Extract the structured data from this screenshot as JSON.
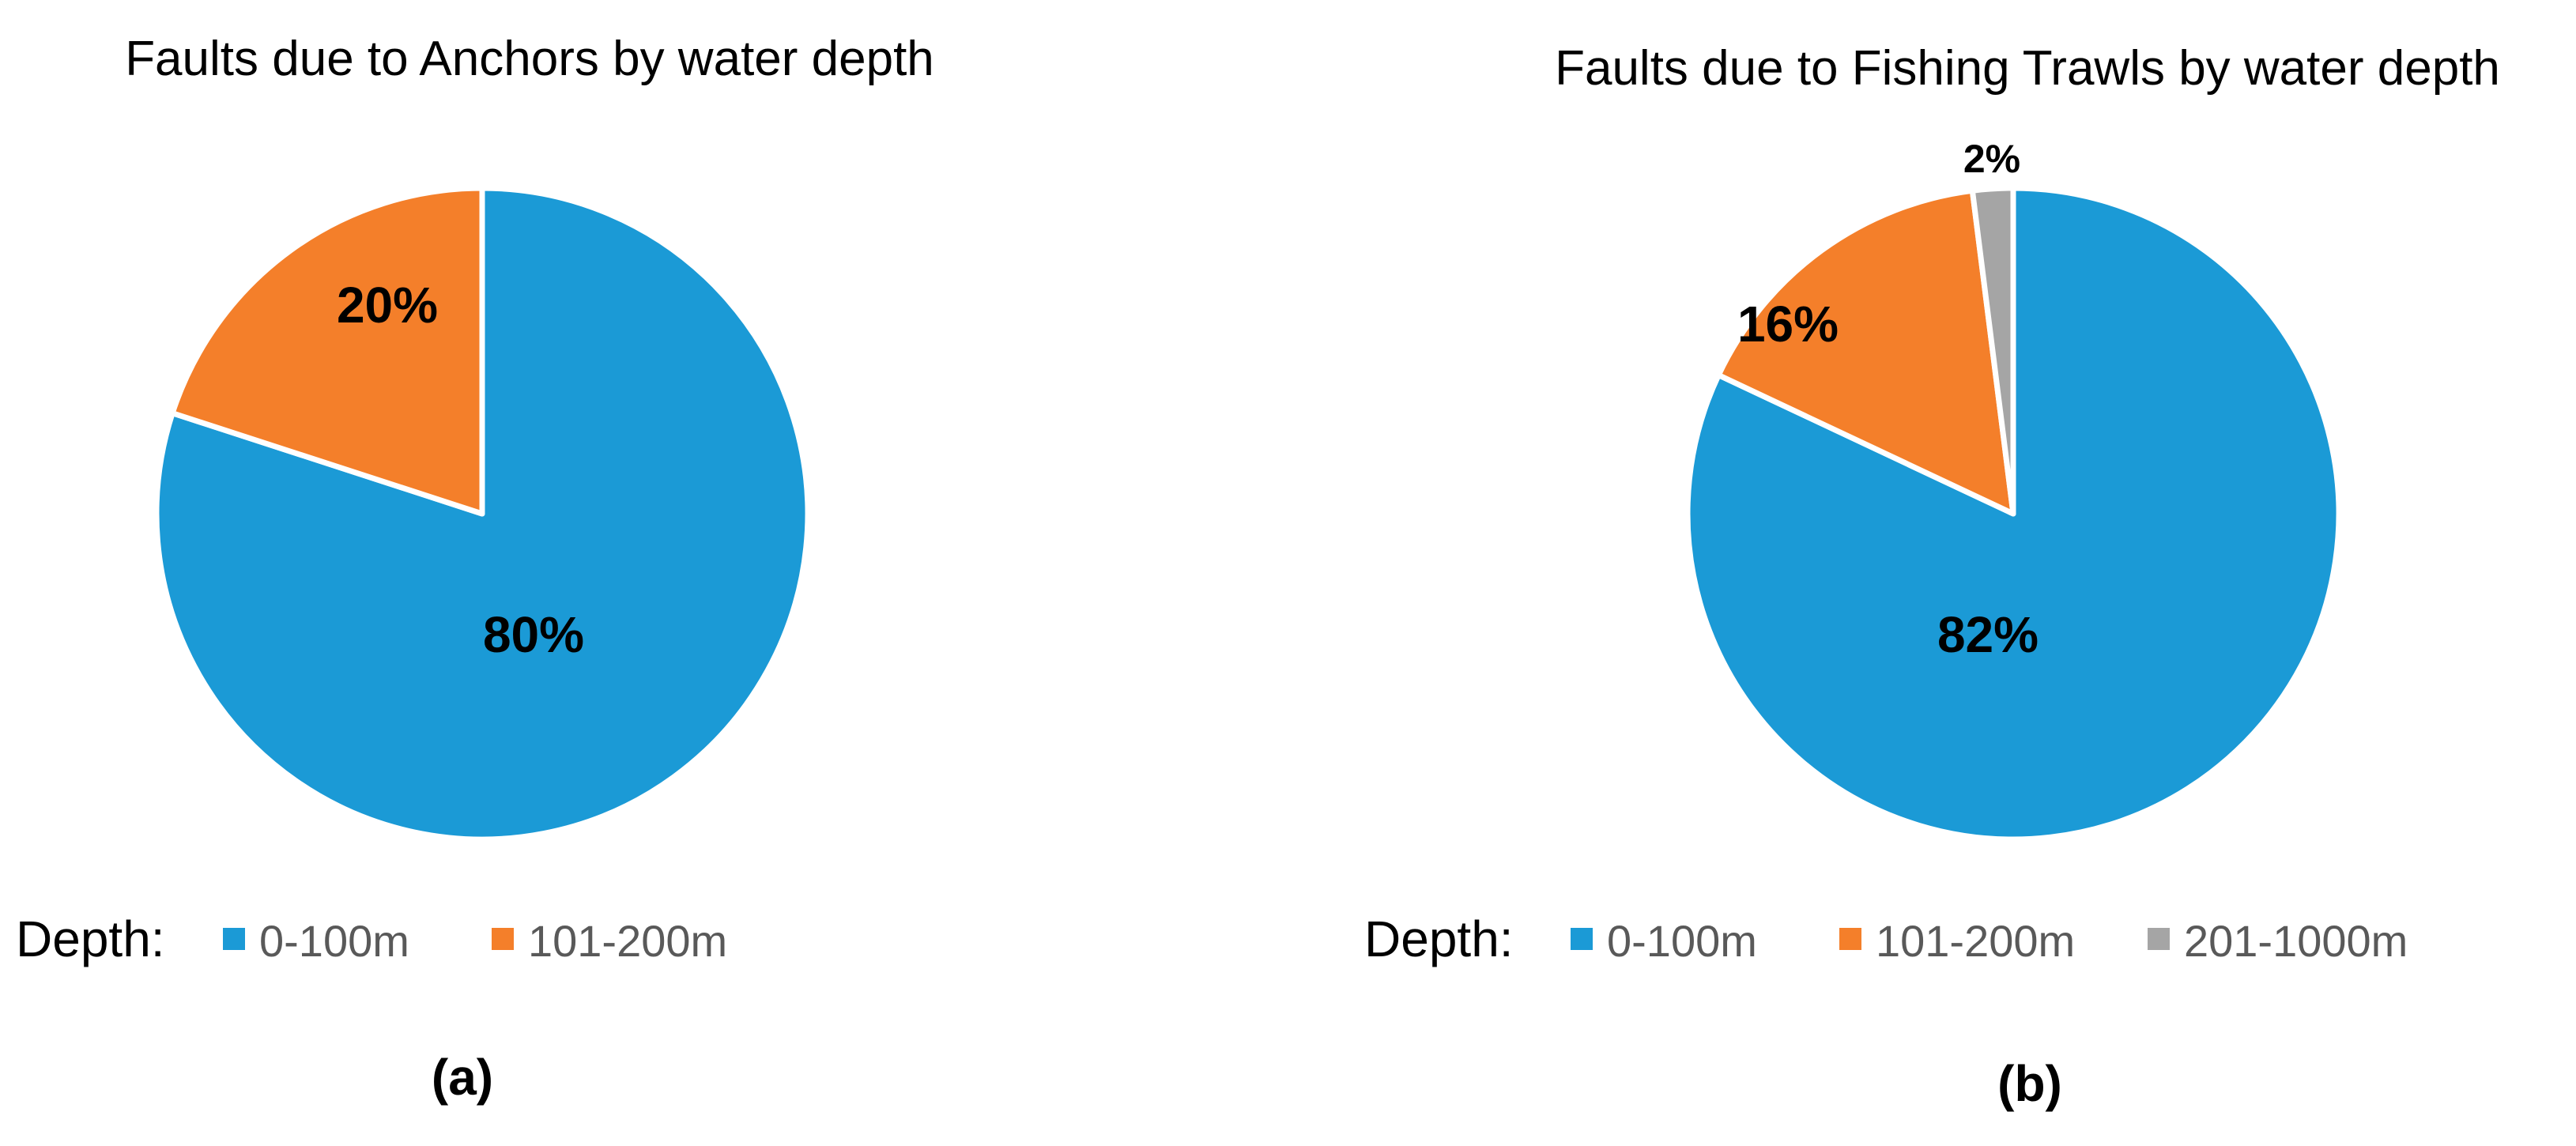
{
  "chart_data": [
    {
      "type": "pie",
      "title": "Faults due to Anchors by water depth",
      "legend_title": "Depth:",
      "legend_placement": "bottom",
      "panel_label": "(a)",
      "slices": [
        {
          "name": "0-100m",
          "value": 80,
          "label": "80%",
          "color": "#1B9AD6"
        },
        {
          "name": "101-200m",
          "value": 20,
          "label": "20%",
          "color": "#F47F2A"
        }
      ]
    },
    {
      "type": "pie",
      "title": "Faults due to Fishing Trawls by water depth",
      "legend_title": "Depth:",
      "legend_placement": "bottom",
      "panel_label": "(b)",
      "slices": [
        {
          "name": "0-100m",
          "value": 82,
          "label": "82%",
          "color": "#1B9AD6"
        },
        {
          "name": "101-200m",
          "value": 16,
          "label": "16%",
          "color": "#F47F2A"
        },
        {
          "name": "201-1000m",
          "value": 2,
          "label": "2%",
          "color": "#A5A5A5"
        }
      ]
    }
  ]
}
